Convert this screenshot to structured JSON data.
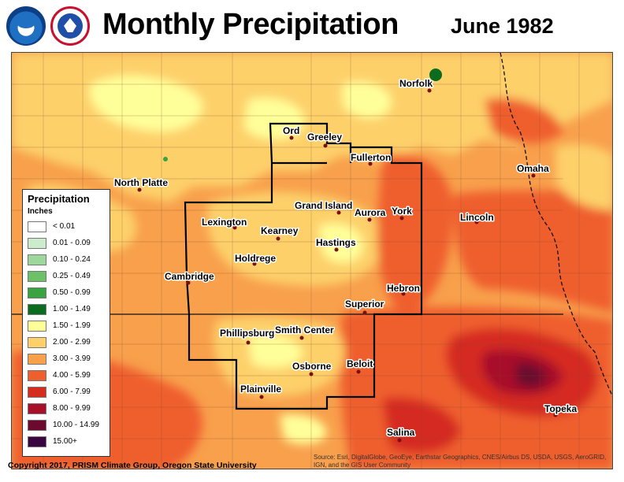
{
  "header": {
    "title": "Monthly Precipitation",
    "period": "June 1982",
    "logos": {
      "noaa": "noaa-logo",
      "nws": "nws-logo"
    }
  },
  "legend": {
    "title": "Precipitation",
    "units": "Inches",
    "classes": [
      {
        "label": "< 0.01",
        "color": "#ffffff"
      },
      {
        "label": "0.01 - 0.09",
        "color": "#cdeccc"
      },
      {
        "label": "0.10 - 0.24",
        "color": "#9fd69c"
      },
      {
        "label": "0.25 - 0.49",
        "color": "#6cc067"
      },
      {
        "label": "0.50 - 0.99",
        "color": "#39a342"
      },
      {
        "label": "1.00 - 1.49",
        "color": "#0b6b1f"
      },
      {
        "label": "1.50 - 1.99",
        "color": "#ffff9a"
      },
      {
        "label": "2.00 - 2.99",
        "color": "#fdd06a"
      },
      {
        "label": "3.00 - 3.99",
        "color": "#f8a04c"
      },
      {
        "label": "4.00 - 5.99",
        "color": "#ef5f2e"
      },
      {
        "label": "6.00 - 7.99",
        "color": "#d52c20"
      },
      {
        "label": "8.00 - 9.99",
        "color": "#a8102a"
      },
      {
        "label": "10.00 - 14.99",
        "color": "#6b0a2e"
      },
      {
        "label": "15.00+",
        "color": "#3a0640"
      }
    ]
  },
  "cities": [
    {
      "name": "Norfolk"
    },
    {
      "name": "Ord"
    },
    {
      "name": "Greeley"
    },
    {
      "name": "Fullerton"
    },
    {
      "name": "Omaha"
    },
    {
      "name": "North Platte"
    },
    {
      "name": "Grand Island"
    },
    {
      "name": "Aurora"
    },
    {
      "name": "York"
    },
    {
      "name": "Lincoln"
    },
    {
      "name": "Lexington"
    },
    {
      "name": "Kearney"
    },
    {
      "name": "Hastings"
    },
    {
      "name": "Holdrege"
    },
    {
      "name": "Cambridge"
    },
    {
      "name": "Hebron"
    },
    {
      "name": "Superior"
    },
    {
      "name": "Phillipsburg"
    },
    {
      "name": "Smith Center"
    },
    {
      "name": "Beloit"
    },
    {
      "name": "Osborne"
    },
    {
      "name": "Plainville"
    },
    {
      "name": "Topeka"
    },
    {
      "name": "Salina"
    }
  ],
  "footer": {
    "copyright": "Copyright 2017, PRISM Climate Group, Oregon State University",
    "source": "Source: Esri, DigitalGlobe, GeoEye, Earthstar Geographics, CNES/Airbus DS, USDA, USGS, AeroGRID, IGN, and the GIS User Community"
  }
}
